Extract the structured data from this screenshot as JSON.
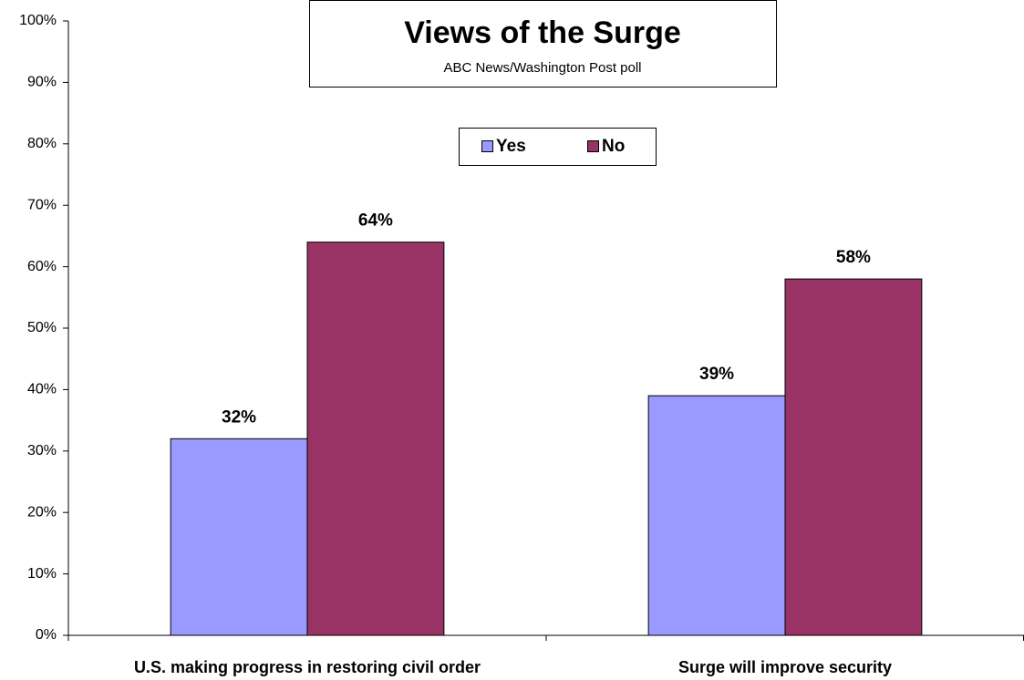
{
  "chart_data": {
    "type": "bar",
    "title": "Views of the Surge",
    "subtitle": "ABC News/Washington Post poll",
    "categories": [
      "U.S. making progress in restoring civil order",
      "Surge will improve security"
    ],
    "series": [
      {
        "name": "Yes",
        "color": "#9999ff",
        "values": [
          32,
          39
        ],
        "value_labels": [
          "32%",
          "39%"
        ]
      },
      {
        "name": "No",
        "color": "#993366",
        "values": [
          64,
          58
        ],
        "value_labels": [
          "64%",
          "58%"
        ]
      }
    ],
    "ylim": [
      0,
      100
    ],
    "yticks": [
      {
        "value": 0,
        "label": "0%"
      },
      {
        "value": 10,
        "label": "10%"
      },
      {
        "value": 20,
        "label": "20%"
      },
      {
        "value": 30,
        "label": "30%"
      },
      {
        "value": 40,
        "label": "40%"
      },
      {
        "value": 50,
        "label": "50%"
      },
      {
        "value": 60,
        "label": "60%"
      },
      {
        "value": 70,
        "label": "70%"
      },
      {
        "value": 80,
        "label": "80%"
      },
      {
        "value": 90,
        "label": "90%"
      },
      {
        "value": 100,
        "label": "100%"
      }
    ],
    "grid": false,
    "legend": "top"
  }
}
